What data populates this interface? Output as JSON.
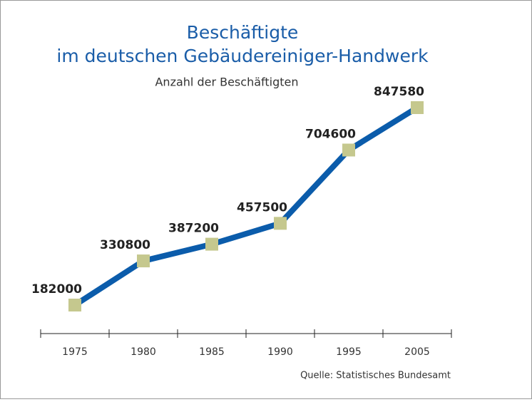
{
  "chart_data": {
    "type": "line",
    "title": [
      "Beschäftigte",
      "im deutschen Gebäudereiniger-Handwerk"
    ],
    "subtitle": "Anzahl der Beschäftigten",
    "source": "Quelle: Statistisches Bundesamt",
    "categories": [
      "1975",
      "1980",
      "1985",
      "1990",
      "1995",
      "2005"
    ],
    "values": [
      182000,
      330800,
      387200,
      457500,
      704600,
      847580
    ],
    "color": "#0b5cab",
    "marker_color": "#c5c88e"
  }
}
